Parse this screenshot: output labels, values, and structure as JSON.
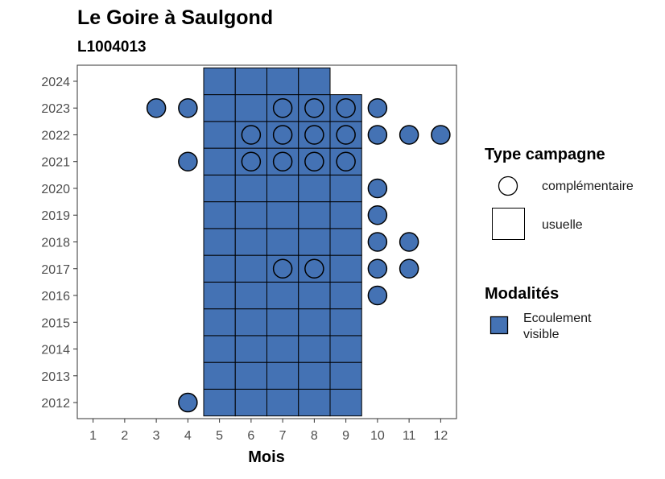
{
  "chart_data": {
    "type": "heatmap",
    "title": "Le Goire à Saulgond",
    "subtitle": "L1004013",
    "xlabel": "Mois",
    "ylabel": "",
    "x_ticks": [
      1,
      2,
      3,
      4,
      5,
      6,
      7,
      8,
      9,
      10,
      11,
      12
    ],
    "y_ticks": [
      2012,
      2013,
      2014,
      2015,
      2016,
      2017,
      2018,
      2019,
      2020,
      2021,
      2022,
      2023,
      2024
    ],
    "xlim": [
      0.5,
      12.5
    ],
    "ylim": [
      2011.4,
      2024.6
    ],
    "fill_color": "#4472b4",
    "legend_campagne": {
      "title": "Type campagne",
      "items": [
        {
          "label": "complémentaire",
          "shape": "circle"
        },
        {
          "label": "usuelle",
          "shape": "square"
        }
      ]
    },
    "legend_modalites": {
      "title": "Modalités",
      "items": [
        {
          "label_lines": [
            "Ecoulement",
            "visible"
          ],
          "color": "#4472b4"
        }
      ]
    },
    "points": [
      {
        "year": 2012,
        "month": 4,
        "type": "complémentaire"
      },
      {
        "year": 2012,
        "month": 5,
        "type": "usuelle"
      },
      {
        "year": 2012,
        "month": 6,
        "type": "usuelle"
      },
      {
        "year": 2012,
        "month": 7,
        "type": "usuelle"
      },
      {
        "year": 2012,
        "month": 8,
        "type": "usuelle"
      },
      {
        "year": 2012,
        "month": 9,
        "type": "usuelle"
      },
      {
        "year": 2013,
        "month": 5,
        "type": "usuelle"
      },
      {
        "year": 2013,
        "month": 6,
        "type": "usuelle"
      },
      {
        "year": 2013,
        "month": 7,
        "type": "usuelle"
      },
      {
        "year": 2013,
        "month": 8,
        "type": "usuelle"
      },
      {
        "year": 2013,
        "month": 9,
        "type": "usuelle"
      },
      {
        "year": 2014,
        "month": 5,
        "type": "usuelle"
      },
      {
        "year": 2014,
        "month": 6,
        "type": "usuelle"
      },
      {
        "year": 2014,
        "month": 7,
        "type": "usuelle"
      },
      {
        "year": 2014,
        "month": 8,
        "type": "usuelle"
      },
      {
        "year": 2014,
        "month": 9,
        "type": "usuelle"
      },
      {
        "year": 2015,
        "month": 5,
        "type": "usuelle"
      },
      {
        "year": 2015,
        "month": 6,
        "type": "usuelle"
      },
      {
        "year": 2015,
        "month": 7,
        "type": "usuelle"
      },
      {
        "year": 2015,
        "month": 8,
        "type": "usuelle"
      },
      {
        "year": 2015,
        "month": 9,
        "type": "usuelle"
      },
      {
        "year": 2016,
        "month": 5,
        "type": "usuelle"
      },
      {
        "year": 2016,
        "month": 6,
        "type": "usuelle"
      },
      {
        "year": 2016,
        "month": 7,
        "type": "usuelle"
      },
      {
        "year": 2016,
        "month": 8,
        "type": "usuelle"
      },
      {
        "year": 2016,
        "month": 9,
        "type": "usuelle"
      },
      {
        "year": 2016,
        "month": 10,
        "type": "complémentaire"
      },
      {
        "year": 2017,
        "month": 5,
        "type": "usuelle"
      },
      {
        "year": 2017,
        "month": 6,
        "type": "usuelle"
      },
      {
        "year": 2017,
        "month": 7,
        "type": "usuelle"
      },
      {
        "year": 2017,
        "month": 8,
        "type": "usuelle"
      },
      {
        "year": 2017,
        "month": 9,
        "type": "usuelle"
      },
      {
        "year": 2017,
        "month": 7,
        "type": "complémentaire"
      },
      {
        "year": 2017,
        "month": 8,
        "type": "complémentaire"
      },
      {
        "year": 2017,
        "month": 10,
        "type": "complémentaire"
      },
      {
        "year": 2017,
        "month": 11,
        "type": "complémentaire"
      },
      {
        "year": 2018,
        "month": 5,
        "type": "usuelle"
      },
      {
        "year": 2018,
        "month": 6,
        "type": "usuelle"
      },
      {
        "year": 2018,
        "month": 7,
        "type": "usuelle"
      },
      {
        "year": 2018,
        "month": 8,
        "type": "usuelle"
      },
      {
        "year": 2018,
        "month": 9,
        "type": "usuelle"
      },
      {
        "year": 2018,
        "month": 10,
        "type": "complémentaire"
      },
      {
        "year": 2018,
        "month": 11,
        "type": "complémentaire"
      },
      {
        "year": 2019,
        "month": 5,
        "type": "usuelle"
      },
      {
        "year": 2019,
        "month": 6,
        "type": "usuelle"
      },
      {
        "year": 2019,
        "month": 7,
        "type": "usuelle"
      },
      {
        "year": 2019,
        "month": 8,
        "type": "usuelle"
      },
      {
        "year": 2019,
        "month": 9,
        "type": "usuelle"
      },
      {
        "year": 2019,
        "month": 10,
        "type": "complémentaire"
      },
      {
        "year": 2020,
        "month": 5,
        "type": "usuelle"
      },
      {
        "year": 2020,
        "month": 6,
        "type": "usuelle"
      },
      {
        "year": 2020,
        "month": 7,
        "type": "usuelle"
      },
      {
        "year": 2020,
        "month": 8,
        "type": "usuelle"
      },
      {
        "year": 2020,
        "month": 9,
        "type": "usuelle"
      },
      {
        "year": 2020,
        "month": 10,
        "type": "complémentaire"
      },
      {
        "year": 2021,
        "month": 4,
        "type": "complémentaire"
      },
      {
        "year": 2021,
        "month": 5,
        "type": "usuelle"
      },
      {
        "year": 2021,
        "month": 6,
        "type": "usuelle"
      },
      {
        "year": 2021,
        "month": 7,
        "type": "usuelle"
      },
      {
        "year": 2021,
        "month": 8,
        "type": "usuelle"
      },
      {
        "year": 2021,
        "month": 9,
        "type": "usuelle"
      },
      {
        "year": 2021,
        "month": 6,
        "type": "complémentaire"
      },
      {
        "year": 2021,
        "month": 7,
        "type": "complémentaire"
      },
      {
        "year": 2021,
        "month": 8,
        "type": "complémentaire"
      },
      {
        "year": 2021,
        "month": 9,
        "type": "complémentaire"
      },
      {
        "year": 2022,
        "month": 5,
        "type": "usuelle"
      },
      {
        "year": 2022,
        "month": 6,
        "type": "usuelle"
      },
      {
        "year": 2022,
        "month": 7,
        "type": "usuelle"
      },
      {
        "year": 2022,
        "month": 8,
        "type": "usuelle"
      },
      {
        "year": 2022,
        "month": 9,
        "type": "usuelle"
      },
      {
        "year": 2022,
        "month": 6,
        "type": "complémentaire"
      },
      {
        "year": 2022,
        "month": 7,
        "type": "complémentaire"
      },
      {
        "year": 2022,
        "month": 8,
        "type": "complémentaire"
      },
      {
        "year": 2022,
        "month": 9,
        "type": "complémentaire"
      },
      {
        "year": 2022,
        "month": 10,
        "type": "complémentaire"
      },
      {
        "year": 2022,
        "month": 11,
        "type": "complémentaire"
      },
      {
        "year": 2022,
        "month": 12,
        "type": "complémentaire"
      },
      {
        "year": 2023,
        "month": 3,
        "type": "complémentaire"
      },
      {
        "year": 2023,
        "month": 4,
        "type": "complémentaire"
      },
      {
        "year": 2023,
        "month": 5,
        "type": "usuelle"
      },
      {
        "year": 2023,
        "month": 6,
        "type": "usuelle"
      },
      {
        "year": 2023,
        "month": 7,
        "type": "usuelle"
      },
      {
        "year": 2023,
        "month": 8,
        "type": "usuelle"
      },
      {
        "year": 2023,
        "month": 9,
        "type": "usuelle"
      },
      {
        "year": 2023,
        "month": 7,
        "type": "complémentaire"
      },
      {
        "year": 2023,
        "month": 8,
        "type": "complémentaire"
      },
      {
        "year": 2023,
        "month": 9,
        "type": "complémentaire"
      },
      {
        "year": 2023,
        "month": 10,
        "type": "complémentaire"
      },
      {
        "year": 2024,
        "month": 5,
        "type": "usuelle"
      },
      {
        "year": 2024,
        "month": 6,
        "type": "usuelle"
      },
      {
        "year": 2024,
        "month": 7,
        "type": "usuelle"
      },
      {
        "year": 2024,
        "month": 8,
        "type": "usuelle"
      }
    ]
  }
}
